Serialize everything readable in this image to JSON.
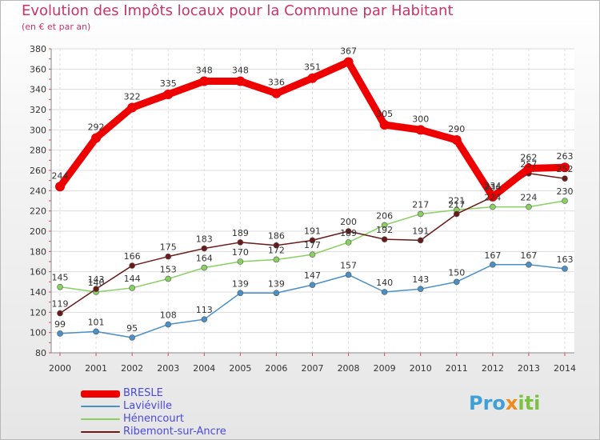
{
  "chart_data": {
    "type": "line",
    "title": "Evolution des Impôts locaux pour la Commune par Habitant",
    "subtitle": "(en € et par an)",
    "x": [
      "2000",
      "2001",
      "2002",
      "2003",
      "2004",
      "2005",
      "2006",
      "2007",
      "2008",
      "2009",
      "2010",
      "2011",
      "2012",
      "2013",
      "2014"
    ],
    "ylim": [
      80,
      380
    ],
    "yticks": [
      80,
      100,
      120,
      140,
      160,
      180,
      200,
      220,
      240,
      260,
      280,
      300,
      320,
      340,
      360,
      380
    ],
    "grid": true,
    "legend_position": "bottom-left",
    "series": [
      {
        "name": "BRESLE",
        "color": "#ee0000",
        "values": [
          244,
          292,
          322,
          335,
          348,
          348,
          336,
          351,
          367,
          305,
          300,
          290,
          234,
          262,
          263
        ]
      },
      {
        "name": "Laviéville",
        "color": "#4a90c8",
        "values": [
          99,
          101,
          95,
          108,
          113,
          139,
          139,
          147,
          157,
          140,
          143,
          150,
          167,
          167,
          163
        ]
      },
      {
        "name": "Hénencourt",
        "color": "#88d060",
        "values": [
          145,
          140,
          144,
          153,
          164,
          170,
          172,
          177,
          189,
          206,
          217,
          221,
          224,
          224,
          230
        ]
      },
      {
        "name": "Ribemont-sur-Ancre",
        "color": "#6b1a1a",
        "values": [
          119,
          143,
          166,
          175,
          183,
          189,
          186,
          191,
          200,
          192,
          191,
          217,
          234,
          257,
          252
        ]
      }
    ]
  },
  "logo": {
    "p1": "Pro",
    "p2": "x",
    "p3": "iti"
  }
}
